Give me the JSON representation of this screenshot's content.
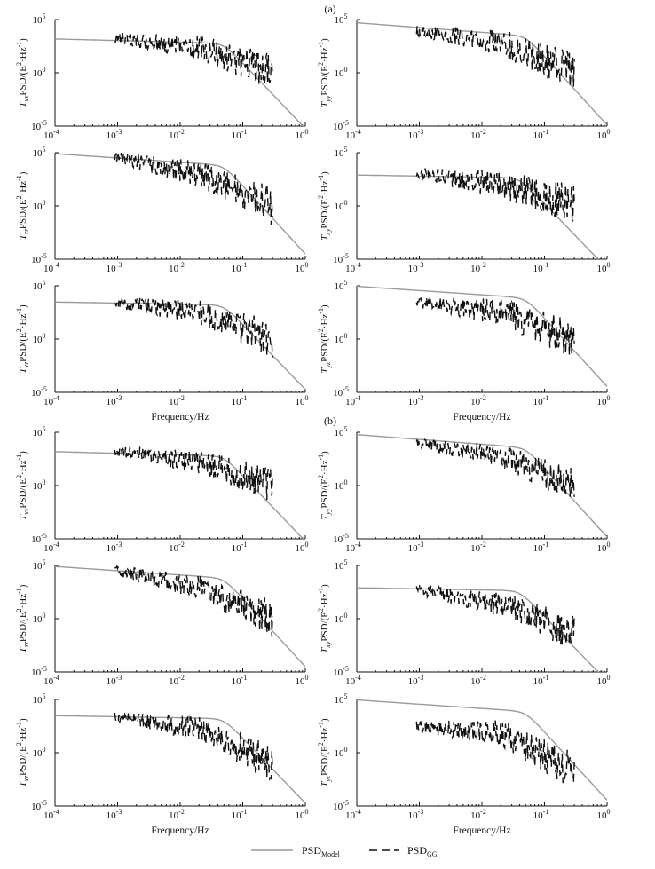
{
  "panel_labels": [
    "(a)",
    "(b)"
  ],
  "legend": {
    "model": {
      "label": "PSD",
      "sub": "Model"
    },
    "gg": {
      "label": "PSD",
      "sub": "GG"
    }
  },
  "colors": {
    "model": "#9a9a9a",
    "gg": "#111111",
    "axis": "#111111"
  },
  "chart_data": [
    {
      "type": "line",
      "panel": "(a)",
      "ylabel": {
        "sym": "T",
        "sub": "xx",
        "rest": "PSD/(E",
        "exp1": "2",
        "mid": "·Hz",
        "exp2": "-1",
        "close": ")"
      },
      "xlim": [
        0.0001,
        1
      ],
      "ylim": [
        1e-05,
        100000
      ],
      "xscale": "log",
      "yscale": "log",
      "xticks": [
        {
          "base": "10",
          "exp": "-4"
        },
        {
          "base": "10",
          "exp": "-3"
        },
        {
          "base": "10",
          "exp": "-2"
        },
        {
          "base": "10",
          "exp": "-1"
        },
        {
          "base": "10",
          "exp": "0"
        }
      ],
      "yticks": [
        {
          "base": "10",
          "exp": "-5"
        },
        {
          "base": "10",
          "exp": "0"
        },
        {
          "base": "10",
          "exp": "5"
        }
      ],
      "xlabel": "",
      "series": [
        {
          "name": "PSD_Model",
          "style": "solid",
          "plateau": 1500,
          "knee": 0.05,
          "order": 6,
          "slope": 0.15
        },
        {
          "name": "PSD_GG",
          "style": "dashed",
          "start": 0.0009,
          "end": 0.3,
          "a": 2000,
          "b": 200,
          "c": 1,
          "noise": 1.4,
          "seed": 1
        }
      ]
    },
    {
      "type": "line",
      "panel": "(a)",
      "ylabel": {
        "sym": "T",
        "sub": "yy",
        "rest": "PSD/(E",
        "exp1": "2",
        "mid": "·Hz",
        "exp2": "-1",
        "close": ")"
      },
      "xlim": [
        0.0001,
        1
      ],
      "ylim": [
        1e-05,
        100000
      ],
      "xscale": "log",
      "yscale": "log",
      "xticks": [
        {
          "base": "10",
          "exp": "-4"
        },
        {
          "base": "10",
          "exp": "-3"
        },
        {
          "base": "10",
          "exp": "-2"
        },
        {
          "base": "10",
          "exp": "-1"
        },
        {
          "base": "10",
          "exp": "0"
        }
      ],
      "yticks": [
        {
          "base": "10",
          "exp": "-5"
        },
        {
          "base": "10",
          "exp": "0"
        },
        {
          "base": "10",
          "exp": "5"
        }
      ],
      "xlabel": "",
      "series": [
        {
          "name": "PSD_Model",
          "style": "solid",
          "plateau": 50000,
          "knee": 0.05,
          "order": 6,
          "slope": 0.45
        },
        {
          "name": "PSD_GG",
          "style": "dashed",
          "start": 0.0009,
          "end": 0.3,
          "a": 10000,
          "b": 600,
          "c": 1,
          "noise": 1.5,
          "seed": 2
        }
      ]
    },
    {
      "type": "line",
      "panel": "(a)",
      "ylabel": {
        "sym": "T",
        "sub": "zz",
        "rest": "PSD/(E",
        "exp1": "2",
        "mid": "·Hz",
        "exp2": "-1",
        "close": ")"
      },
      "xlim": [
        0.0001,
        1
      ],
      "ylim": [
        1e-05,
        100000
      ],
      "xscale": "log",
      "yscale": "log",
      "xticks": [
        {
          "base": "10",
          "exp": "-4"
        },
        {
          "base": "10",
          "exp": "-3"
        },
        {
          "base": "10",
          "exp": "-2"
        },
        {
          "base": "10",
          "exp": "-1"
        },
        {
          "base": "10",
          "exp": "0"
        }
      ],
      "yticks": [
        {
          "base": "10",
          "exp": "-5"
        },
        {
          "base": "10",
          "exp": "0"
        },
        {
          "base": "10",
          "exp": "5"
        }
      ],
      "xlabel": "",
      "series": [
        {
          "name": "PSD_Model",
          "style": "solid",
          "plateau": 80000,
          "knee": 0.05,
          "order": 6,
          "slope": 0.4
        },
        {
          "name": "PSD_GG",
          "style": "dashed",
          "start": 0.0009,
          "end": 0.3,
          "a": 40000,
          "b": 800,
          "c": 1,
          "noise": 1.5,
          "seed": 3
        }
      ]
    },
    {
      "type": "line",
      "panel": "(a)",
      "ylabel": {
        "sym": "T",
        "sub": "xy",
        "rest": "PSD/(E",
        "exp1": "2",
        "mid": "·Hz",
        "exp2": "-1",
        "close": ")"
      },
      "xlim": [
        0.0001,
        1
      ],
      "ylim": [
        1e-05,
        100000
      ],
      "xscale": "log",
      "yscale": "log",
      "xticks": [
        {
          "base": "10",
          "exp": "-4"
        },
        {
          "base": "10",
          "exp": "-3"
        },
        {
          "base": "10",
          "exp": "-2"
        },
        {
          "base": "10",
          "exp": "-1"
        },
        {
          "base": "10",
          "exp": "0"
        }
      ],
      "yticks": [
        {
          "base": "10",
          "exp": "-5"
        },
        {
          "base": "10",
          "exp": "0"
        },
        {
          "base": "10",
          "exp": "5"
        }
      ],
      "xlabel": "",
      "series": [
        {
          "name": "PSD_Model",
          "style": "solid",
          "plateau": 800,
          "knee": 0.04,
          "order": 6,
          "slope": 0.1
        },
        {
          "name": "PSD_GG",
          "style": "dashed",
          "start": 0.0009,
          "end": 0.3,
          "a": 1000,
          "b": 100,
          "c": 1,
          "noise": 1.6,
          "seed": 4
        }
      ]
    },
    {
      "type": "line",
      "panel": "(a)",
      "ylabel": {
        "sym": "T",
        "sub": "xz",
        "rest": "PSD/(E",
        "exp1": "2",
        "mid": "·Hz",
        "exp2": "-1",
        "close": ")"
      },
      "xlim": [
        0.0001,
        1
      ],
      "ylim": [
        1e-05,
        100000
      ],
      "xscale": "log",
      "yscale": "log",
      "xticks": [
        {
          "base": "10",
          "exp": "-4"
        },
        {
          "base": "10",
          "exp": "-3"
        },
        {
          "base": "10",
          "exp": "-2"
        },
        {
          "base": "10",
          "exp": "-1"
        },
        {
          "base": "10",
          "exp": "0"
        }
      ],
      "yticks": [
        {
          "base": "10",
          "exp": "-5"
        },
        {
          "base": "10",
          "exp": "0"
        },
        {
          "base": "10",
          "exp": "5"
        }
      ],
      "xlabel": "Frequency/Hz",
      "series": [
        {
          "name": "PSD_Model",
          "style": "solid",
          "plateau": 3000,
          "knee": 0.05,
          "order": 6,
          "slope": 0.1
        },
        {
          "name": "PSD_GG",
          "style": "dashed",
          "start": 0.0009,
          "end": 0.3,
          "a": 3000,
          "b": 300,
          "c": 1,
          "noise": 1.4,
          "seed": 5
        }
      ]
    },
    {
      "type": "line",
      "panel": "(a)",
      "ylabel": {
        "sym": "T",
        "sub": "yz",
        "rest": "PSD/(E",
        "exp1": "2",
        "mid": "·Hz",
        "exp2": "-1",
        "close": ")"
      },
      "xlim": [
        0.0001,
        1
      ],
      "ylim": [
        1e-05,
        100000
      ],
      "xscale": "log",
      "yscale": "log",
      "xticks": [
        {
          "base": "10",
          "exp": "-4"
        },
        {
          "base": "10",
          "exp": "-3"
        },
        {
          "base": "10",
          "exp": "-2"
        },
        {
          "base": "10",
          "exp": "-1"
        },
        {
          "base": "10",
          "exp": "0"
        }
      ],
      "yticks": [
        {
          "base": "10",
          "exp": "-5"
        },
        {
          "base": "10",
          "exp": "0"
        },
        {
          "base": "10",
          "exp": "5"
        }
      ],
      "xlabel": "Frequency/Hz",
      "series": [
        {
          "name": "PSD_Model",
          "style": "solid",
          "plateau": 90000,
          "knee": 0.05,
          "order": 6,
          "slope": 0.4
        },
        {
          "name": "PSD_GG",
          "style": "dashed",
          "start": 0.0009,
          "end": 0.3,
          "a": 3000,
          "b": 300,
          "c": 1,
          "noise": 1.5,
          "seed": 6
        }
      ]
    },
    {
      "type": "line",
      "panel": "(b)",
      "ylabel": {
        "sym": "T",
        "sub": "xx",
        "rest": "PSD/(E",
        "exp1": "2",
        "mid": "·Hz",
        "exp2": "-1",
        "close": ")"
      },
      "xlim": [
        0.0001,
        1
      ],
      "ylim": [
        1e-05,
        100000
      ],
      "xscale": "log",
      "yscale": "log",
      "xticks": [
        {
          "base": "10",
          "exp": "-4"
        },
        {
          "base": "10",
          "exp": "-3"
        },
        {
          "base": "10",
          "exp": "-2"
        },
        {
          "base": "10",
          "exp": "-1"
        },
        {
          "base": "10",
          "exp": "0"
        }
      ],
      "yticks": [
        {
          "base": "10",
          "exp": "-5"
        },
        {
          "base": "10",
          "exp": "0"
        },
        {
          "base": "10",
          "exp": "5"
        }
      ],
      "xlabel": "",
      "series": [
        {
          "name": "PSD_Model",
          "style": "solid",
          "plateau": 1500,
          "knee": 0.05,
          "order": 6,
          "slope": 0.15
        },
        {
          "name": "PSD_GG",
          "style": "dashed",
          "start": 0.0009,
          "end": 0.3,
          "a": 2000,
          "b": 150,
          "c": 1,
          "noise": 1.3,
          "seed": 7
        }
      ]
    },
    {
      "type": "line",
      "panel": "(b)",
      "ylabel": {
        "sym": "T",
        "sub": "yy",
        "rest": "PSD/(E",
        "exp1": "2",
        "mid": "·Hz",
        "exp2": "-1",
        "close": ")"
      },
      "xlim": [
        0.0001,
        1
      ],
      "ylim": [
        1e-05,
        100000
      ],
      "xscale": "log",
      "yscale": "log",
      "xticks": [
        {
          "base": "10",
          "exp": "-4"
        },
        {
          "base": "10",
          "exp": "-3"
        },
        {
          "base": "10",
          "exp": "-2"
        },
        {
          "base": "10",
          "exp": "-1"
        },
        {
          "base": "10",
          "exp": "0"
        }
      ],
      "yticks": [
        {
          "base": "10",
          "exp": "-5"
        },
        {
          "base": "10",
          "exp": "0"
        },
        {
          "base": "10",
          "exp": "5"
        }
      ],
      "xlabel": "",
      "series": [
        {
          "name": "PSD_Model",
          "style": "solid",
          "plateau": 60000,
          "knee": 0.05,
          "order": 6,
          "slope": 0.45
        },
        {
          "name": "PSD_GG",
          "style": "dashed",
          "start": 0.0009,
          "end": 0.3,
          "a": 10000,
          "b": 500,
          "c": 1,
          "noise": 1.3,
          "seed": 8
        }
      ]
    },
    {
      "type": "line",
      "panel": "(b)",
      "ylabel": {
        "sym": "T",
        "sub": "zz",
        "rest": "PSD/(E",
        "exp1": "2",
        "mid": "·Hz",
        "exp2": "-1",
        "close": ")"
      },
      "xlim": [
        0.0001,
        1
      ],
      "ylim": [
        1e-05,
        100000
      ],
      "xscale": "log",
      "yscale": "log",
      "xticks": [
        {
          "base": "10",
          "exp": "-4"
        },
        {
          "base": "10",
          "exp": "-3"
        },
        {
          "base": "10",
          "exp": "-2"
        },
        {
          "base": "10",
          "exp": "-1"
        },
        {
          "base": "10",
          "exp": "0"
        }
      ],
      "yticks": [
        {
          "base": "10",
          "exp": "-5"
        },
        {
          "base": "10",
          "exp": "0"
        },
        {
          "base": "10",
          "exp": "5"
        }
      ],
      "xlabel": "",
      "series": [
        {
          "name": "PSD_Model",
          "style": "solid",
          "plateau": 80000,
          "knee": 0.05,
          "order": 6,
          "slope": 0.4
        },
        {
          "name": "PSD_GG",
          "style": "dashed",
          "start": 0.0009,
          "end": 0.3,
          "a": 40000,
          "b": 700,
          "c": 1,
          "noise": 1.4,
          "seed": 9
        }
      ]
    },
    {
      "type": "line",
      "panel": "(b)",
      "ylabel": {
        "sym": "T",
        "sub": "xy",
        "rest": "PSD/(E",
        "exp1": "2",
        "mid": "·Hz",
        "exp2": "-1",
        "close": ")"
      },
      "xlim": [
        0.0001,
        1
      ],
      "ylim": [
        1e-05,
        100000
      ],
      "xscale": "log",
      "yscale": "log",
      "xticks": [
        {
          "base": "10",
          "exp": "-4"
        },
        {
          "base": "10",
          "exp": "-3"
        },
        {
          "base": "10",
          "exp": "-2"
        },
        {
          "base": "10",
          "exp": "-1"
        },
        {
          "base": "10",
          "exp": "0"
        }
      ],
      "yticks": [
        {
          "base": "10",
          "exp": "-5"
        },
        {
          "base": "10",
          "exp": "0"
        },
        {
          "base": "10",
          "exp": "5"
        }
      ],
      "xlabel": "",
      "series": [
        {
          "name": "PSD_Model",
          "style": "solid",
          "plateau": 800,
          "knee": 0.04,
          "order": 6,
          "slope": 0.1
        },
        {
          "name": "PSD_GG",
          "style": "dashed",
          "start": 0.0009,
          "end": 0.3,
          "a": 600,
          "b": 20,
          "c": 0.05,
          "noise": 1.4,
          "seed": 10
        }
      ]
    },
    {
      "type": "line",
      "panel": "(b)",
      "ylabel": {
        "sym": "T",
        "sub": "xz",
        "rest": "PSD/(E",
        "exp1": "2",
        "mid": "·Hz",
        "exp2": "-1",
        "close": ")"
      },
      "xlim": [
        0.0001,
        1
      ],
      "ylim": [
        1e-05,
        100000
      ],
      "xscale": "log",
      "yscale": "log",
      "xticks": [
        {
          "base": "10",
          "exp": "-4"
        },
        {
          "base": "10",
          "exp": "-3"
        },
        {
          "base": "10",
          "exp": "-2"
        },
        {
          "base": "10",
          "exp": "-1"
        },
        {
          "base": "10",
          "exp": "0"
        }
      ],
      "yticks": [
        {
          "base": "10",
          "exp": "-5"
        },
        {
          "base": "10",
          "exp": "0"
        },
        {
          "base": "10",
          "exp": "5"
        }
      ],
      "xlabel": "Frequency/Hz",
      "series": [
        {
          "name": "PSD_Model",
          "style": "solid",
          "plateau": 3000,
          "knee": 0.05,
          "order": 6,
          "slope": 0.1
        },
        {
          "name": "PSD_GG",
          "style": "dashed",
          "start": 0.0009,
          "end": 0.3,
          "a": 2500,
          "b": 150,
          "c": 0.1,
          "noise": 1.4,
          "seed": 11
        }
      ]
    },
    {
      "type": "line",
      "panel": "(b)",
      "ylabel": {
        "sym": "T",
        "sub": "yz",
        "rest": "PSD/(E",
        "exp1": "2",
        "mid": "·Hz",
        "exp2": "-1",
        "close": ")"
      },
      "xlim": [
        0.0001,
        1
      ],
      "ylim": [
        1e-05,
        100000
      ],
      "xscale": "log",
      "yscale": "log",
      "xticks": [
        {
          "base": "10",
          "exp": "-4"
        },
        {
          "base": "10",
          "exp": "-3"
        },
        {
          "base": "10",
          "exp": "-2"
        },
        {
          "base": "10",
          "exp": "-1"
        },
        {
          "base": "10",
          "exp": "0"
        }
      ],
      "yticks": [
        {
          "base": "10",
          "exp": "-5"
        },
        {
          "base": "10",
          "exp": "0"
        },
        {
          "base": "10",
          "exp": "5"
        }
      ],
      "xlabel": "Frequency/Hz",
      "series": [
        {
          "name": "PSD_Model",
          "style": "solid",
          "plateau": 90000,
          "knee": 0.05,
          "order": 6,
          "slope": 0.4
        },
        {
          "name": "PSD_GG",
          "style": "dashed",
          "start": 0.0009,
          "end": 0.3,
          "a": 300,
          "b": 60,
          "c": 0.02,
          "noise": 1.5,
          "seed": 12
        }
      ]
    }
  ]
}
